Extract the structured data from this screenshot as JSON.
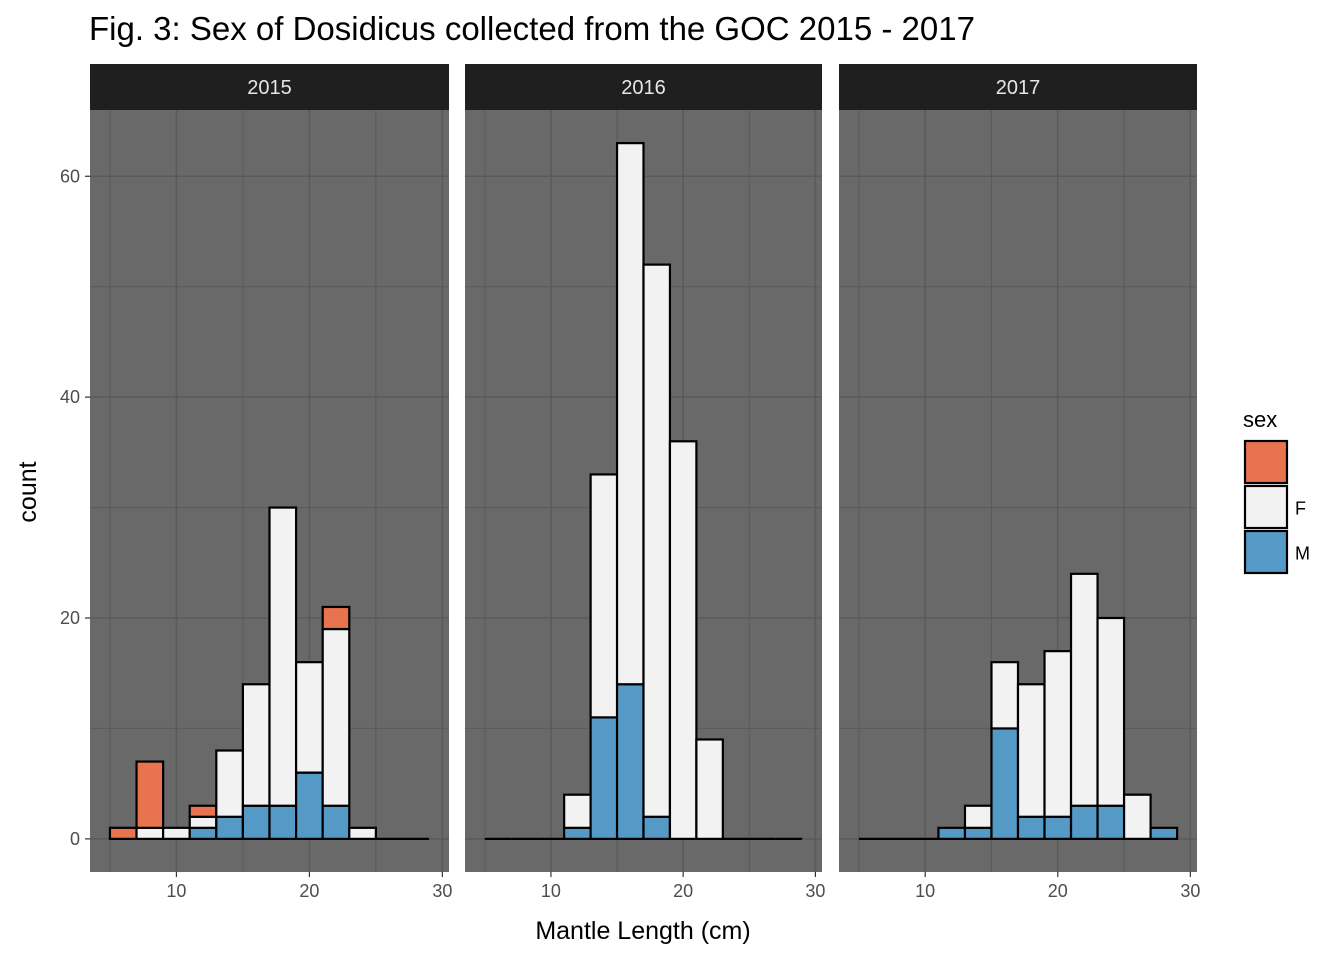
{
  "chart_data": {
    "type": "bar",
    "subtype": "faceted stacked histogram",
    "title": "Fig. 3: Sex of Dosidicus collected from the GOC 2015 - 2017",
    "xlabel": "Mantle Length (cm)",
    "ylabel": "count",
    "xlim": [
      3.5,
      30.5
    ],
    "ylim": [
      -3,
      66
    ],
    "xticks": [
      10,
      20,
      30
    ],
    "yticks": [
      0,
      20,
      40,
      60
    ],
    "bin_width": 2,
    "bin_centers": [
      6,
      8,
      10,
      12,
      14,
      16,
      18,
      20,
      22,
      24,
      26,
      28
    ],
    "grid": true,
    "legend": {
      "title": "sex",
      "position": "right",
      "entries": [
        {
          "label": "",
          "color": "#e8734f"
        },
        {
          "label": "F",
          "color": "#f2f2f2"
        },
        {
          "label": "M",
          "color": "#5599c7"
        }
      ]
    },
    "colors": {
      "panel_bg": "#696969",
      "strip_bg": "#1f1f1f",
      "grid": "#5a5a5a",
      "bar_outline": "#000000"
    },
    "facets": [
      {
        "label": "2015",
        "series": [
          {
            "name": "M",
            "values": [
              0,
              0,
              0,
              1,
              2,
              3,
              3,
              6,
              3,
              0,
              0,
              0
            ]
          },
          {
            "name": "F",
            "values": [
              0,
              1,
              1,
              1,
              6,
              11,
              27,
              10,
              16,
              1,
              0,
              0
            ]
          },
          {
            "name": "",
            "values": [
              1,
              6,
              0,
              1,
              0,
              0,
              0,
              0,
              2,
              0,
              0,
              0
            ]
          }
        ]
      },
      {
        "label": "2016",
        "series": [
          {
            "name": "M",
            "values": [
              0,
              0,
              0,
              1,
              11,
              14,
              2,
              0,
              0,
              0,
              0,
              0
            ]
          },
          {
            "name": "F",
            "values": [
              0,
              0,
              0,
              3,
              22,
              49,
              50,
              36,
              9,
              0,
              0,
              0
            ]
          },
          {
            "name": "",
            "values": [
              0,
              0,
              0,
              0,
              0,
              0,
              0,
              0,
              0,
              0,
              0,
              0
            ]
          }
        ]
      },
      {
        "label": "2017",
        "series": [
          {
            "name": "M",
            "values": [
              0,
              0,
              0,
              1,
              1,
              10,
              2,
              2,
              3,
              3,
              0,
              1
            ]
          },
          {
            "name": "F",
            "values": [
              0,
              0,
              0,
              0,
              2,
              6,
              12,
              15,
              21,
              17,
              4,
              0
            ]
          },
          {
            "name": "",
            "values": [
              0,
              0,
              0,
              0,
              0,
              0,
              0,
              0,
              0,
              0,
              0,
              0
            ]
          }
        ]
      }
    ]
  }
}
